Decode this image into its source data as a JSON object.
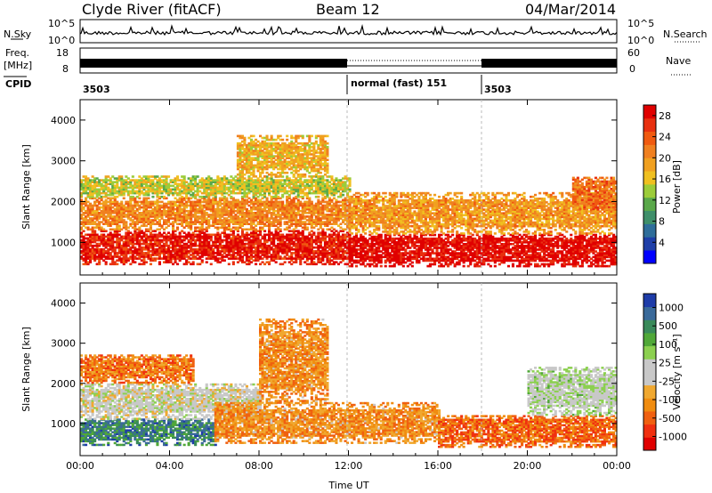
{
  "header": {
    "title": "Clyde River (fitACF)",
    "beam": "Beam 12",
    "date": "04/Mar/2014"
  },
  "top_panels": {
    "nsky_label": "N.Sky",
    "nsky_ticks": [
      "10^5",
      "10^0"
    ],
    "nsearch_label": "N.Search",
    "nsearch_ticks": [
      "10^5",
      "10^0"
    ],
    "freq_label": "Freq.",
    "freq_unit": "[MHz]",
    "freq_ticks": [
      "18",
      "8"
    ],
    "nave_label": "Nave",
    "nave_ticks": [
      "60",
      "0"
    ],
    "cpid_label": "CPID",
    "cpid_segments": [
      {
        "label": "3503",
        "start_hour": 0,
        "end_hour": 12
      },
      {
        "label": "normal (fast) 151",
        "start_hour": 12,
        "end_hour": 18
      },
      {
        "label": "3503",
        "start_hour": 18,
        "end_hour": 24
      }
    ]
  },
  "colors": {
    "power_scale": [
      "#0000ff",
      "#1f3fa8",
      "#2f6e9a",
      "#3f8f6a",
      "#5aa84a",
      "#9ccc3a",
      "#f0c020",
      "#f0a020",
      "#f08020",
      "#f05a10",
      "#e83010",
      "#e00000"
    ],
    "velocity_scale": [
      "#e00000",
      "#f03010",
      "#f06010",
      "#f08c10",
      "#f0a830",
      "#c8c8c8",
      "#c8c8c8",
      "#8cd050",
      "#50a838",
      "#3a8a5a",
      "#3a6a9a",
      "#1e3ca8"
    ]
  },
  "chart_data": [
    {
      "type": "heatmap",
      "name": "power",
      "ylabel": "Slant Range [km]",
      "y_ticks": [
        1000,
        2000,
        3000,
        4000
      ],
      "ylim": [
        200,
        4500
      ],
      "x_ticks": [
        "00:00",
        "04:00",
        "08:00",
        "12:00",
        "16:00",
        "20:00",
        "00:00"
      ],
      "xlim_hours": [
        0,
        24
      ],
      "colorbar_label": "Power [dB]",
      "colorbar_ticks": [
        4,
        8,
        12,
        16,
        20,
        24,
        28
      ],
      "colorbar_range": [
        0,
        30
      ],
      "bands": [
        {
          "t_start": 0,
          "t_end": 12,
          "r_low": 450,
          "r_high": 1300,
          "level": 0.92
        },
        {
          "t_start": 0,
          "t_end": 12,
          "r_low": 1300,
          "r_high": 2100,
          "level": 0.7
        },
        {
          "t_start": 0,
          "t_end": 12,
          "r_low": 2100,
          "r_high": 2600,
          "level": 0.5
        },
        {
          "t_start": 7,
          "t_end": 11,
          "r_low": 2600,
          "r_high": 3600,
          "level": 0.6
        },
        {
          "t_start": 12,
          "t_end": 24,
          "r_low": 400,
          "r_high": 1200,
          "level": 0.97
        },
        {
          "t_start": 12,
          "t_end": 24,
          "r_low": 1200,
          "r_high": 2200,
          "level": 0.65
        },
        {
          "t_start": 22,
          "t_end": 24,
          "r_low": 1800,
          "r_high": 2600,
          "level": 0.75
        }
      ]
    },
    {
      "type": "heatmap",
      "name": "velocity",
      "ylabel": "Slant Range [km]",
      "y_ticks": [
        1000,
        2000,
        3000,
        4000
      ],
      "ylim": [
        200,
        4500
      ],
      "x_ticks": [
        "00:00",
        "04:00",
        "08:00",
        "12:00",
        "16:00",
        "20:00",
        "00:00"
      ],
      "xlim_hours": [
        0,
        24
      ],
      "xlabel": "Time UT",
      "colorbar_label": "Velocity [m s⁻¹]",
      "colorbar_ticks": [
        1000,
        500,
        100,
        25,
        -25,
        -100,
        -500,
        -1000
      ],
      "bands": [
        {
          "t_start": 0,
          "t_end": 6,
          "r_low": 450,
          "r_high": 1100,
          "level": 0.82
        },
        {
          "t_start": 0,
          "t_end": 8,
          "r_low": 1100,
          "r_high": 2000,
          "level": 0.5
        },
        {
          "t_start": 0,
          "t_end": 5,
          "r_low": 2000,
          "r_high": 2700,
          "level": 0.25
        },
        {
          "t_start": 6,
          "t_end": 16,
          "r_low": 500,
          "r_high": 1500,
          "level": 0.3
        },
        {
          "t_start": 8,
          "t_end": 11,
          "r_low": 1500,
          "r_high": 3600,
          "level": 0.3
        },
        {
          "t_start": 16,
          "t_end": 24,
          "r_low": 400,
          "r_high": 1200,
          "level": 0.22
        },
        {
          "t_start": 20,
          "t_end": 24,
          "r_low": 1200,
          "r_high": 2400,
          "level": 0.55
        }
      ]
    }
  ]
}
